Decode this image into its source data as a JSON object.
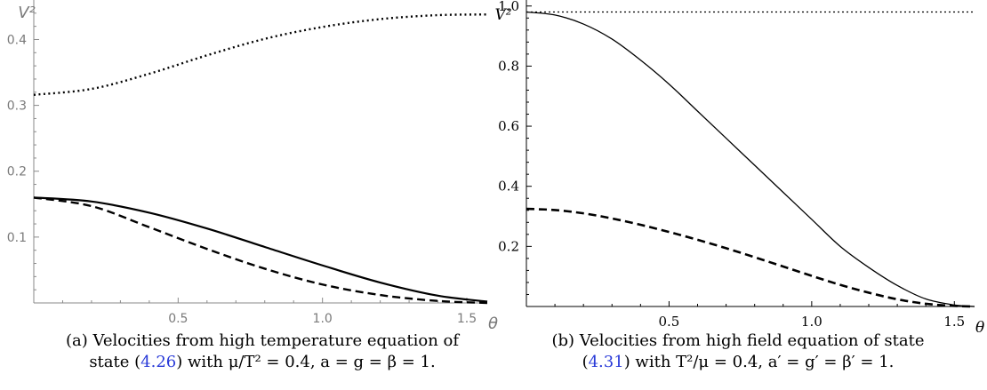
{
  "chart_data": [
    {
      "type": "line",
      "panel": "a",
      "xlabel": "θ",
      "ylabel": "V²",
      "xlim": [
        0,
        1.5708
      ],
      "ylim": [
        0,
        0.46
      ],
      "xticks_major": [
        0.5,
        1.0,
        1.5
      ],
      "xtick_labels": [
        "0.5",
        "1.0",
        "1.5"
      ],
      "yticks_major": [
        0.1,
        0.2,
        0.3,
        0.4
      ],
      "ytick_labels": [
        "0.1",
        "0.2",
        "0.3",
        "0.4"
      ],
      "series": [
        {
          "style": "dotted",
          "x": [
            0,
            0.2,
            0.4,
            0.6,
            0.8,
            1.0,
            1.2,
            1.4,
            1.5708
          ],
          "values": [
            0.316,
            0.325,
            0.348,
            0.376,
            0.401,
            0.419,
            0.431,
            0.437,
            0.438
          ]
        },
        {
          "style": "solid",
          "x": [
            0,
            0.2,
            0.4,
            0.6,
            0.8,
            1.0,
            1.2,
            1.4,
            1.5708
          ],
          "values": [
            0.16,
            0.154,
            0.137,
            0.113,
            0.085,
            0.057,
            0.031,
            0.011,
            0.002
          ]
        },
        {
          "style": "dashed",
          "x": [
            0,
            0.2,
            0.4,
            0.6,
            0.8,
            1.0,
            1.2,
            1.4,
            1.5708
          ],
          "values": [
            0.16,
            0.147,
            0.115,
            0.082,
            0.052,
            0.028,
            0.012,
            0.003,
            0.0
          ]
        }
      ]
    },
    {
      "type": "line",
      "panel": "b",
      "xlabel": "θ",
      "ylabel": "V²",
      "xlim": [
        0,
        1.5708
      ],
      "ylim": [
        0,
        1.02
      ],
      "xticks_major": [
        0.5,
        1.0,
        1.5
      ],
      "xtick_labels": [
        "0.5",
        "1.0",
        "1.5"
      ],
      "yticks_major": [
        0.2,
        0.4,
        0.6,
        0.8,
        1.0
      ],
      "ytick_labels": [
        "0.2",
        "0.4",
        "0.6",
        "0.8",
        "1.0"
      ],
      "series": [
        {
          "style": "dotted",
          "x": [
            0,
            0.5,
            1.0,
            1.5708
          ],
          "values": [
            0.98,
            0.98,
            0.98,
            0.98
          ]
        },
        {
          "style": "solid",
          "x": [
            0,
            0.1,
            0.2,
            0.3,
            0.4,
            0.5,
            0.6,
            0.7,
            0.8,
            0.9,
            1.0,
            1.1,
            1.2,
            1.3,
            1.4,
            1.5,
            1.5708
          ],
          "values": [
            0.98,
            0.97,
            0.94,
            0.89,
            0.82,
            0.74,
            0.65,
            0.56,
            0.47,
            0.38,
            0.29,
            0.2,
            0.13,
            0.07,
            0.025,
            0.005,
            0.0
          ]
        },
        {
          "style": "dashed",
          "x": [
            0,
            0.1,
            0.2,
            0.3,
            0.4,
            0.5,
            0.6,
            0.7,
            0.8,
            0.9,
            1.0,
            1.1,
            1.2,
            1.3,
            1.4,
            1.5,
            1.5708
          ],
          "values": [
            0.325,
            0.321,
            0.31,
            0.293,
            0.272,
            0.248,
            0.222,
            0.194,
            0.164,
            0.133,
            0.102,
            0.072,
            0.046,
            0.024,
            0.009,
            0.002,
            0.0
          ]
        }
      ]
    }
  ],
  "captions": {
    "a": {
      "label": "(a)",
      "line1_text": "Velocities from high temperature equation of",
      "line2_pre": "state (",
      "line2_ref": "4.26",
      "line2_post": ") with μ/T² = 0.4, a = g = β = 1."
    },
    "b": {
      "label": "(b)",
      "line1_text": "Velocities from high field equation of state",
      "line2_pre": "(",
      "line2_ref": "4.31",
      "line2_post": ") with T²/μ = 0.4, a′ = g′ = β′ = 1."
    }
  }
}
